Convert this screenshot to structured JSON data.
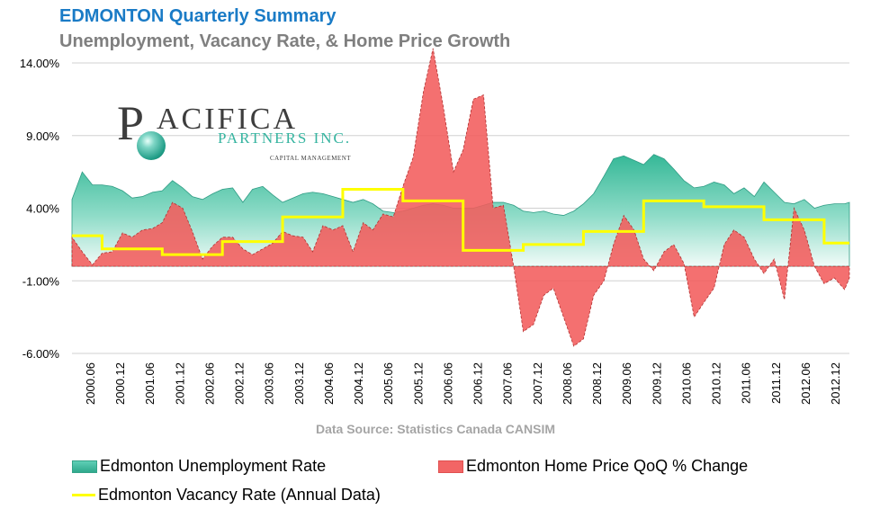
{
  "header": {
    "title": "EDMONTON Quarterly Summary",
    "subtitle": "Unemployment, Vacancy Rate, & Home Price Growth"
  },
  "source": "Data Source: Statistics Canada CANSIM",
  "logo": {
    "initial": "P",
    "name_rest": "ACIFICA",
    "partners": "PARTNERS INC.",
    "tagline": "CAPITAL MANAGEMENT"
  },
  "legend": {
    "unemployment": "Edmonton Unemployment Rate",
    "home_price": "Edmonton Home Price QoQ % Change",
    "vacancy": "Edmonton Vacancy Rate (Annual Data)"
  },
  "colors": {
    "unemployment_fill": "#3fbfa3",
    "home_price_fill": "#f25c5c",
    "vacancy_line": "#ffff00",
    "gridline": "#d0d0d0",
    "title": "#1a7bc6",
    "subtitle": "#7f7f7f"
  },
  "chart_data": {
    "type": "area",
    "title": "EDMONTON Quarterly Summary",
    "subtitle": "Unemployment, Vacancy Rate, & Home Price Growth",
    "ylim": [
      -6,
      14
    ],
    "y_ticks": [
      "14.00%",
      "9.00%",
      "4.00%",
      "-1.00%",
      "-6.00%"
    ],
    "y_tick_values": [
      14,
      9,
      4,
      -1,
      -6
    ],
    "x_tick_labels": [
      "2000.06",
      "2000.12",
      "2001.06",
      "2001.12",
      "2002.06",
      "2002.12",
      "2003.06",
      "2003.12",
      "2004.06",
      "2004.12",
      "2005.06",
      "2005.12",
      "2006.06",
      "2006.12",
      "2007.06",
      "2007.12",
      "2008.06",
      "2008.12",
      "2009.06",
      "2009.12",
      "2010.06",
      "2010.12",
      "2011.06",
      "2011.12",
      "2012.06",
      "2012.12"
    ],
    "x_start": 2000.33,
    "x_end": 2013.25,
    "grid": true,
    "legend": "bottom",
    "series": [
      {
        "name": "Edmonton Unemployment Rate",
        "kind": "area",
        "x": [
          2000.33,
          2000.5,
          2000.67,
          2000.83,
          2001.0,
          2001.17,
          2001.33,
          2001.5,
          2001.67,
          2001.83,
          2002.0,
          2002.17,
          2002.33,
          2002.5,
          2002.67,
          2002.83,
          2003.0,
          2003.17,
          2003.33,
          2003.5,
          2003.67,
          2003.83,
          2004.0,
          2004.17,
          2004.33,
          2004.5,
          2004.67,
          2004.83,
          2005.0,
          2005.17,
          2005.33,
          2005.5,
          2005.67,
          2005.83,
          2006.0,
          2006.17,
          2006.33,
          2006.5,
          2006.67,
          2006.83,
          2007.0,
          2007.17,
          2007.33,
          2007.5,
          2007.67,
          2007.83,
          2008.0,
          2008.17,
          2008.33,
          2008.5,
          2008.67,
          2008.83,
          2009.0,
          2009.17,
          2009.33,
          2009.5,
          2009.67,
          2009.83,
          2010.0,
          2010.17,
          2010.33,
          2010.5,
          2010.67,
          2010.83,
          2011.0,
          2011.17,
          2011.33,
          2011.5,
          2011.67,
          2011.83,
          2012.0,
          2012.17,
          2012.33,
          2012.5,
          2012.67,
          2012.83,
          2013.0,
          2013.17,
          2013.25
        ],
        "values": [
          4.6,
          6.5,
          5.6,
          5.6,
          5.5,
          5.2,
          4.7,
          4.8,
          5.1,
          5.2,
          5.9,
          5.4,
          4.8,
          4.6,
          5.0,
          5.3,
          5.4,
          4.4,
          5.3,
          5.5,
          4.9,
          4.4,
          4.7,
          5.0,
          5.1,
          5.0,
          4.8,
          4.6,
          4.4,
          4.6,
          4.3,
          3.8,
          3.7,
          3.8,
          4.0,
          4.2,
          4.3,
          4.2,
          4.0,
          4.0,
          4.0,
          4.2,
          4.4,
          4.4,
          4.2,
          3.8,
          3.7,
          3.8,
          3.6,
          3.5,
          3.8,
          4.3,
          5.0,
          6.2,
          7.4,
          7.6,
          7.3,
          7.0,
          7.7,
          7.4,
          6.7,
          5.9,
          5.4,
          5.5,
          5.8,
          5.6,
          5.0,
          5.4,
          4.8,
          5.8,
          5.1,
          4.4,
          4.3,
          4.6,
          4.0,
          4.2,
          4.3,
          4.3,
          4.4
        ]
      },
      {
        "name": "Edmonton Home Price QoQ % Change",
        "kind": "area",
        "x": [
          2000.33,
          2000.5,
          2000.67,
          2000.83,
          2001.0,
          2001.17,
          2001.33,
          2001.5,
          2001.67,
          2001.83,
          2002.0,
          2002.17,
          2002.33,
          2002.5,
          2002.67,
          2002.83,
          2003.0,
          2003.17,
          2003.33,
          2003.5,
          2003.67,
          2003.83,
          2004.0,
          2004.17,
          2004.33,
          2004.5,
          2004.67,
          2004.83,
          2005.0,
          2005.17,
          2005.33,
          2005.5,
          2005.67,
          2005.83,
          2006.0,
          2006.17,
          2006.33,
          2006.5,
          2006.67,
          2006.83,
          2007.0,
          2007.17,
          2007.33,
          2007.5,
          2007.67,
          2007.83,
          2008.0,
          2008.17,
          2008.33,
          2008.5,
          2008.67,
          2008.83,
          2009.0,
          2009.17,
          2009.33,
          2009.5,
          2009.67,
          2009.83,
          2010.0,
          2010.17,
          2010.33,
          2010.5,
          2010.67,
          2010.83,
          2011.0,
          2011.17,
          2011.33,
          2011.5,
          2011.67,
          2011.83,
          2012.0,
          2012.17,
          2012.33,
          2012.5,
          2012.67,
          2012.83,
          2013.0,
          2013.17,
          2013.25
        ],
        "values": [
          2.0,
          1.0,
          0.1,
          0.9,
          1.0,
          2.3,
          2.0,
          2.5,
          2.6,
          3.0,
          4.4,
          4.0,
          2.4,
          0.5,
          1.4,
          2.0,
          2.0,
          1.2,
          0.8,
          1.2,
          1.6,
          2.4,
          2.1,
          2.0,
          1.0,
          2.8,
          2.5,
          2.8,
          1.0,
          3.0,
          2.5,
          3.6,
          3.4,
          5.5,
          7.5,
          12.0,
          15.0,
          11.0,
          6.5,
          8.0,
          11.5,
          11.8,
          4.0,
          4.2,
          0.0,
          -4.5,
          -4.0,
          -2.0,
          -1.5,
          -3.5,
          -5.5,
          -5.0,
          -2.0,
          -1.0,
          1.5,
          3.5,
          2.5,
          0.5,
          -0.3,
          1.0,
          1.5,
          0.2,
          -3.5,
          -2.5,
          -1.5,
          1.5,
          2.5,
          2.0,
          0.5,
          -0.5,
          0.5,
          -2.3,
          4.0,
          2.5,
          0.0,
          -1.2,
          -0.8,
          -1.6,
          -0.8
        ]
      },
      {
        "name": "Edmonton Vacancy Rate (Annual Data)",
        "kind": "step",
        "x": [
          2000.33,
          2000.83,
          2001.83,
          2002.83,
          2003.83,
          2004.83,
          2005.83,
          2006.83,
          2007.83,
          2008.83,
          2009.83,
          2010.83,
          2011.83,
          2012.83,
          2013.25
        ],
        "values": [
          2.1,
          1.2,
          0.8,
          1.7,
          3.4,
          5.3,
          4.5,
          1.1,
          1.5,
          2.4,
          4.5,
          4.1,
          3.2,
          1.6,
          1.6
        ]
      }
    ]
  }
}
